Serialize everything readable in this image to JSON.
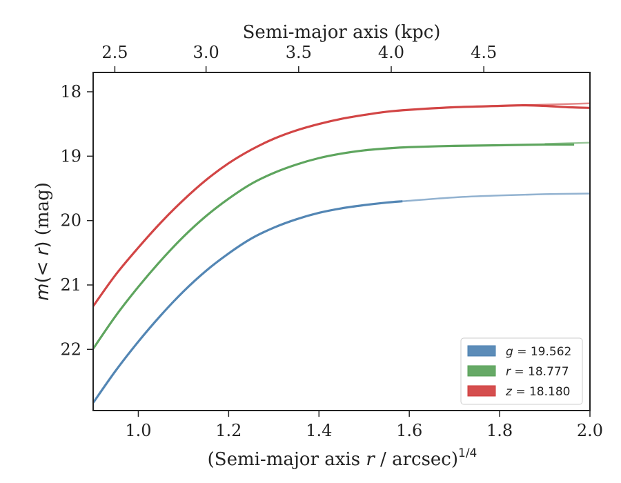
{
  "chart_data": {
    "type": "line",
    "title": "",
    "xlabel_prefix": "(Semi-major axis ",
    "xlabel_var": "r",
    "xlabel_suffix": " / arcsec)",
    "xlabel_exp": "1/4",
    "ylabel_m": "m",
    "ylabel_mid": "(< ",
    "ylabel_r": "r",
    "ylabel_paren": ")",
    "ylabel_unit": " (mag)",
    "top_xlabel": "Semi-major axis (kpc)",
    "xlim": [
      0.9,
      2.0
    ],
    "ylim": [
      22.95,
      17.7
    ],
    "y_inverted": true,
    "xticks": [
      "1.0",
      "1.2",
      "1.4",
      "1.6",
      "1.8",
      "2.0"
    ],
    "yticks": [
      "18",
      "19",
      "20",
      "21",
      "22"
    ],
    "top_ticks": [
      {
        "label": "2.5",
        "x": 0.948
      },
      {
        "label": "3.0",
        "x": 1.15
      },
      {
        "label": "3.5",
        "x": 1.355
      },
      {
        "label": "4.0",
        "x": 1.56
      },
      {
        "label": "4.5",
        "x": 1.765
      }
    ],
    "legend_position": "lower-right",
    "series": [
      {
        "name": "g = 19.562",
        "band": "g",
        "value": "19.562",
        "color": "#4a7fb0",
        "x": [
          0.9,
          0.95,
          1.0,
          1.05,
          1.1,
          1.15,
          1.2,
          1.25,
          1.3,
          1.35,
          1.4,
          1.45,
          1.5,
          1.55,
          1.585
        ],
        "y": [
          22.83,
          22.33,
          21.88,
          21.47,
          21.1,
          20.78,
          20.51,
          20.28,
          20.11,
          19.98,
          19.88,
          19.81,
          19.76,
          19.72,
          19.7
        ],
        "ext_x": [
          1.585,
          1.7,
          1.8,
          1.9,
          2.0
        ],
        "ext_y": [
          19.7,
          19.64,
          19.61,
          19.59,
          19.58
        ]
      },
      {
        "name": "r = 18.777",
        "band": "r",
        "value": "18.777",
        "color": "#55a055",
        "x": [
          0.9,
          0.95,
          1.0,
          1.05,
          1.1,
          1.15,
          1.2,
          1.25,
          1.3,
          1.35,
          1.4,
          1.45,
          1.5,
          1.55,
          1.6,
          1.7,
          1.8,
          1.9,
          1.965
        ],
        "y": [
          21.99,
          21.48,
          21.03,
          20.62,
          20.25,
          19.93,
          19.66,
          19.43,
          19.26,
          19.13,
          19.03,
          18.96,
          18.91,
          18.88,
          18.86,
          18.84,
          18.83,
          18.82,
          18.82
        ],
        "ext_x": [
          1.9,
          1.95,
          2.0
        ],
        "ext_y": [
          18.81,
          18.8,
          18.79
        ]
      },
      {
        "name": "z = 18.180",
        "band": "z",
        "value": "18.180",
        "color": "#d03b3b",
        "x": [
          0.9,
          0.95,
          1.0,
          1.05,
          1.1,
          1.15,
          1.2,
          1.25,
          1.3,
          1.35,
          1.4,
          1.45,
          1.5,
          1.55,
          1.6,
          1.7,
          1.8,
          1.85,
          1.9,
          1.95,
          2.0
        ],
        "y": [
          21.33,
          20.84,
          20.42,
          20.03,
          19.68,
          19.37,
          19.11,
          18.9,
          18.73,
          18.6,
          18.5,
          18.42,
          18.36,
          18.31,
          18.28,
          18.24,
          18.22,
          18.21,
          18.22,
          18.24,
          18.25
        ],
        "ext_x": [
          1.85,
          1.9,
          1.95,
          2.0
        ],
        "ext_y": [
          18.21,
          18.2,
          18.19,
          18.18
        ]
      }
    ]
  }
}
